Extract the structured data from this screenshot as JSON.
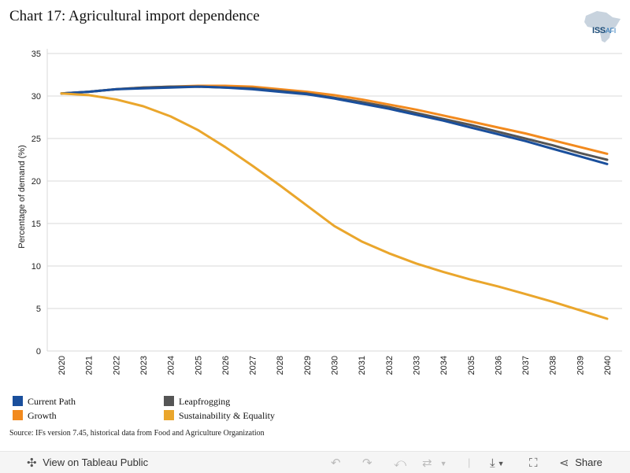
{
  "title": "Chart 17: Agricultural import dependence",
  "logo": {
    "text": "ISS",
    "sub": "AFI"
  },
  "source": "Source: IFs version 7.45, historical data from Food and Agriculture Organization",
  "toolbar": {
    "view_label": "View on Tableau Public",
    "share_label": "Share"
  },
  "colors": {
    "current_path": "#1a4f9c",
    "leapfrogging": "#555555",
    "growth": "#f28a1e",
    "sustainability": "#eaa62c"
  },
  "chart_data": {
    "type": "line",
    "title": "Chart 17: Agricultural import dependence",
    "xlabel": "",
    "ylabel": "Percentage of demand (%)",
    "ylim": [
      0,
      35
    ],
    "yticks": [
      0,
      5,
      10,
      15,
      20,
      25,
      30,
      35
    ],
    "x": [
      "2020",
      "2021",
      "2022",
      "2023",
      "2024",
      "2025",
      "2026",
      "2027",
      "2028",
      "2029",
      "2030",
      "2031",
      "2032",
      "2033",
      "2034",
      "2035",
      "2036",
      "2037",
      "2038",
      "2039",
      "2040"
    ],
    "grid": true,
    "legend": "bottom",
    "series": [
      {
        "name": "Growth",
        "color": "#f28a1e",
        "values": [
          30.3,
          30.5,
          30.8,
          31.0,
          31.1,
          31.2,
          31.2,
          31.1,
          30.8,
          30.5,
          30.1,
          29.6,
          29.0,
          28.4,
          27.7,
          27.0,
          26.3,
          25.6,
          24.8,
          24.0,
          23.2
        ]
      },
      {
        "name": "Leapfrogging",
        "color": "#555555",
        "values": [
          30.3,
          30.5,
          30.8,
          31.0,
          31.1,
          31.1,
          31.0,
          30.9,
          30.6,
          30.3,
          29.8,
          29.3,
          28.7,
          28.0,
          27.3,
          26.6,
          25.8,
          25.0,
          24.2,
          23.3,
          22.5
        ]
      },
      {
        "name": "Current Path",
        "color": "#1a4f9c",
        "values": [
          30.3,
          30.5,
          30.8,
          30.9,
          31.0,
          31.1,
          31.0,
          30.8,
          30.5,
          30.2,
          29.7,
          29.1,
          28.5,
          27.8,
          27.1,
          26.3,
          25.5,
          24.7,
          23.8,
          22.9,
          22.0
        ]
      },
      {
        "name": "Sustainability & Equality",
        "color": "#eaa62c",
        "values": [
          30.3,
          30.1,
          29.6,
          28.8,
          27.6,
          26.0,
          24.0,
          21.8,
          19.5,
          17.1,
          14.7,
          12.9,
          11.5,
          10.3,
          9.3,
          8.4,
          7.6,
          6.7,
          5.8,
          4.8,
          3.8
        ]
      }
    ]
  },
  "legend_items": [
    {
      "label": "Current Path",
      "color": "#1a4f9c"
    },
    {
      "label": "Leapfrogging",
      "color": "#555555"
    },
    {
      "label": "Growth",
      "color": "#f28a1e"
    },
    {
      "label": "Sustainability & Equality",
      "color": "#eaa62c"
    }
  ]
}
